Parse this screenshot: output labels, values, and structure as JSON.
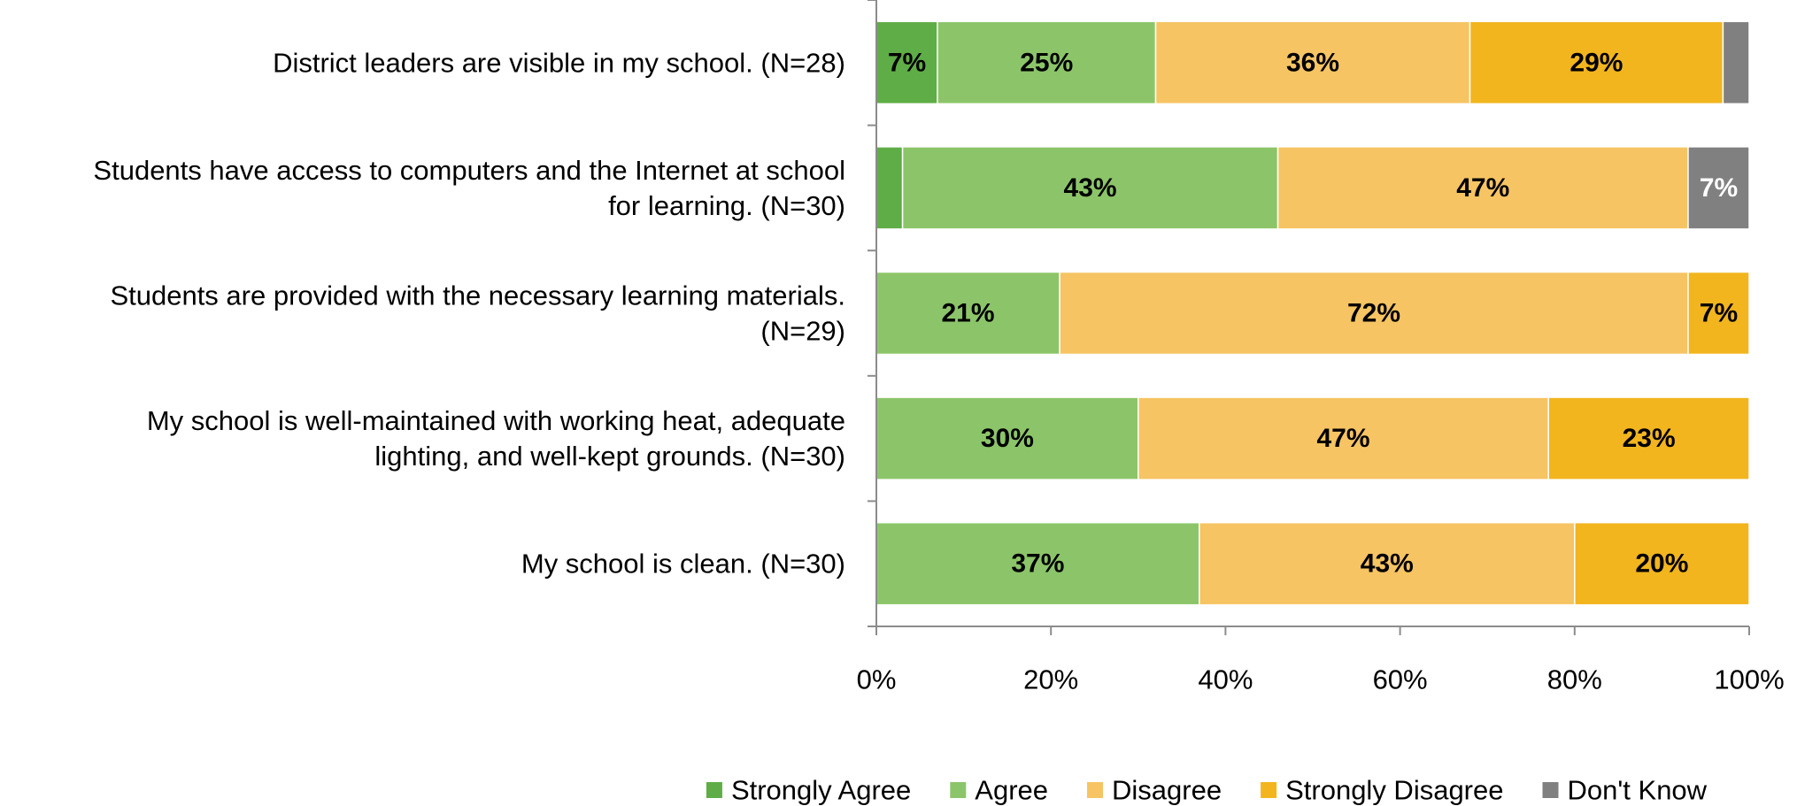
{
  "chart_data": {
    "type": "bar",
    "orientation": "horizontal",
    "stacked": true,
    "categories": [
      [
        "District leaders are visible in my school. (N=28)"
      ],
      [
        "Students have access to computers and the Internet at school",
        "for learning. (N=30)"
      ],
      [
        "Students are provided with the necessary learning materials.",
        "(N=29)"
      ],
      [
        "My school is well-maintained with working heat, adequate",
        "lighting, and well-kept grounds. (N=30)"
      ],
      [
        "My school is clean. (N=30)"
      ]
    ],
    "series": [
      {
        "name": "Strongly Agree",
        "color": "#5fad46",
        "values": [
          7,
          3,
          0,
          0,
          0
        ],
        "labels": [
          "7%",
          "",
          "",
          "",
          ""
        ],
        "label_color": "#000000"
      },
      {
        "name": "Agree",
        "color": "#8cc569",
        "values": [
          25,
          43,
          21,
          30,
          37
        ],
        "labels": [
          "25%",
          "43%",
          "21%",
          "30%",
          "37%"
        ],
        "label_color": "#000000"
      },
      {
        "name": "Disagree",
        "color": "#f6c463",
        "values": [
          36,
          47,
          72,
          47,
          43
        ],
        "labels": [
          "36%",
          "47%",
          "72%",
          "47%",
          "43%"
        ],
        "label_color": "#000000"
      },
      {
        "name": "Strongly Disagree",
        "color": "#f2b51e",
        "values": [
          29,
          0,
          7,
          23,
          20
        ],
        "labels": [
          "29%",
          "",
          "7%",
          "23%",
          "20%"
        ],
        "label_color": "#000000"
      },
      {
        "name": "Don't Know",
        "color": "#808080",
        "values": [
          3,
          7,
          0,
          0,
          0
        ],
        "labels": [
          "",
          "7%",
          "",
          "",
          ""
        ],
        "label_color": "#ffffff"
      }
    ],
    "xlim": [
      0,
      100
    ],
    "xticks": [
      0,
      20,
      40,
      60,
      80,
      100
    ],
    "xtick_labels": [
      "0%",
      "20%",
      "40%",
      "60%",
      "80%",
      "100%"
    ],
    "title": "",
    "xlabel": "",
    "ylabel": "",
    "grid": false,
    "legend_position": "bottom"
  }
}
